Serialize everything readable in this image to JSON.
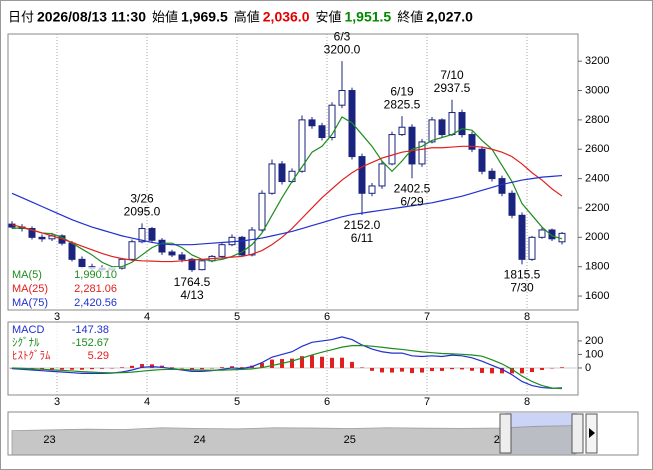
{
  "header": {
    "fields": [
      {
        "label": "日付",
        "value": "2026/08/13 11:30",
        "color": "#000000"
      },
      {
        "label": "始値",
        "value": "1,969.5",
        "color": "#000000"
      },
      {
        "label": "高値",
        "value": "2,036.0",
        "color": "#e00000"
      },
      {
        "label": "安値",
        "value": "1,951.5",
        "color": "#008800"
      },
      {
        "label": "終値",
        "value": "2,027.0",
        "color": "#000000"
      }
    ]
  },
  "chart_data": [
    {
      "type": "candlestick",
      "categories": [
        null,
        null,
        null,
        null,
        null,
        "3",
        null,
        null,
        null,
        null,
        null,
        null,
        null,
        null,
        "4",
        null,
        null,
        null,
        null,
        null,
        null,
        null,
        null,
        "5",
        null,
        null,
        null,
        null,
        null,
        null,
        null,
        null,
        "6",
        null,
        null,
        null,
        null,
        null,
        null,
        null,
        null,
        null,
        "7",
        null,
        null,
        null,
        null,
        null,
        null,
        null,
        null,
        null,
        "8",
        null,
        null,
        null
      ],
      "open": [
        2090,
        2070,
        2060,
        2000,
        1990,
        2010,
        1960,
        1850,
        1800,
        1790,
        1780,
        1790,
        1850,
        1970,
        2060,
        1980,
        1900,
        1880,
        1850,
        1780,
        1840,
        1870,
        1950,
        2000,
        1880,
        2050,
        2300,
        2500,
        2380,
        2450,
        2800,
        2760,
        2680,
        2900,
        3000,
        2550,
        2300,
        2350,
        2500,
        2700,
        2750,
        2500,
        2650,
        2800,
        2700,
        2850,
        2700,
        2600,
        2450,
        2400,
        2300,
        2150,
        1850,
        2000,
        2050,
        1969.5
      ],
      "high": [
        2110,
        2090,
        2075,
        2020,
        2030,
        2020,
        1975,
        1870,
        1820,
        1810,
        1800,
        1860,
        1985,
        2095,
        2070,
        1995,
        1915,
        1900,
        1860,
        1850,
        1880,
        1960,
        2020,
        2010,
        2070,
        2320,
        2530,
        2520,
        2470,
        2830,
        2820,
        2780,
        2920,
        3200,
        3020,
        2570,
        2370,
        2520,
        2720,
        2825.5,
        2770,
        2670,
        2820,
        2810,
        2937.5,
        2870,
        2720,
        2620,
        2470,
        2420,
        2320,
        2170,
        2010,
        2070,
        2060,
        2036
      ],
      "low": [
        2060,
        2040,
        1985,
        1970,
        1975,
        1945,
        1835,
        1785,
        1770,
        1765,
        1770,
        1780,
        1840,
        1960,
        1965,
        1880,
        1865,
        1830,
        1764.5,
        1775,
        1830,
        1860,
        1940,
        1870,
        1870,
        2040,
        2290,
        2360,
        2370,
        2440,
        2740,
        2660,
        2660,
        2880,
        2530,
        2152,
        2280,
        2330,
        2490,
        2690,
        2402.5,
        2480,
        2640,
        2680,
        2690,
        2680,
        2580,
        2430,
        2380,
        2280,
        2130,
        1815.5,
        1840,
        1990,
        1975,
        1951.5
      ],
      "close": [
        2070,
        2060,
        2000,
        1990,
        2010,
        1960,
        1850,
        1800,
        1790,
        1780,
        1790,
        1850,
        1970,
        2060,
        1980,
        1900,
        1880,
        1850,
        1780,
        1840,
        1870,
        1950,
        2000,
        1880,
        2050,
        2300,
        2500,
        2380,
        2450,
        2800,
        2760,
        2680,
        2900,
        3000,
        2550,
        2300,
        2350,
        2500,
        2700,
        2750,
        2500,
        2650,
        2800,
        2700,
        2850,
        2700,
        2600,
        2450,
        2400,
        2300,
        2150,
        1850,
        2000,
        2050,
        1990,
        2027
      ],
      "up_color": "#ffffff",
      "down_color": "#1a237e",
      "ylim": [
        1505,
        3385
      ],
      "yticks": [
        1600,
        1800,
        2000,
        2200,
        2400,
        2600,
        2800,
        3000,
        3200
      ],
      "grid": true,
      "series": [
        {
          "name": "MA(5)",
          "color": "#1e8c1e",
          "legend_value": "1,990.10",
          "values": [
            2060,
            2065,
            2050,
            2030,
            2025,
            2000,
            1960,
            1920,
            1880,
            1830,
            1800,
            1800,
            1830,
            1880,
            1930,
            1960,
            1960,
            1930,
            1880,
            1850,
            1840,
            1850,
            1870,
            1900,
            1950,
            2030,
            2150,
            2270,
            2380,
            2480,
            2580,
            2620,
            2700,
            2820,
            2780,
            2700,
            2620,
            2520,
            2450,
            2520,
            2600,
            2620,
            2660,
            2680,
            2700,
            2740,
            2730,
            2660,
            2600,
            2490,
            2380,
            2230,
            2150,
            2070,
            2010,
            1990.1
          ]
        },
        {
          "name": "MA(25)",
          "color": "#e02020",
          "legend_value": "2,281.06",
          "values": [
            2085,
            2070,
            2050,
            2030,
            2010,
            1990,
            1965,
            1940,
            1915,
            1890,
            1870,
            1855,
            1845,
            1840,
            1838,
            1835,
            1835,
            1840,
            1845,
            1850,
            1855,
            1860,
            1865,
            1870,
            1885,
            1910,
            1950,
            2000,
            2060,
            2130,
            2200,
            2270,
            2330,
            2390,
            2440,
            2480,
            2510,
            2540,
            2560,
            2580,
            2590,
            2600,
            2610,
            2610,
            2615,
            2620,
            2620,
            2615,
            2600,
            2580,
            2550,
            2500,
            2440,
            2390,
            2330,
            2281.06
          ]
        },
        {
          "name": "MA(75)",
          "color": "#2030d0",
          "legend_value": "2,420.56",
          "values": [
            2300,
            2270,
            2240,
            2210,
            2180,
            2150,
            2120,
            2095,
            2070,
            2050,
            2030,
            2010,
            1995,
            1980,
            1965,
            1955,
            1950,
            1950,
            1950,
            1955,
            1960,
            1965,
            1970,
            1975,
            1985,
            1995,
            2010,
            2025,
            2040,
            2060,
            2080,
            2100,
            2120,
            2140,
            2155,
            2165,
            2175,
            2185,
            2195,
            2205,
            2215,
            2225,
            2235,
            2250,
            2265,
            2280,
            2300,
            2320,
            2340,
            2360,
            2375,
            2390,
            2400,
            2410,
            2415,
            2420.56
          ]
        }
      ],
      "annotations": [
        {
          "date": "3/26",
          "value": 2095,
          "label": "2095.0"
        },
        {
          "date": "4/13",
          "value": 1764.5,
          "label": "1764.5"
        },
        {
          "date": "6/3",
          "value": 3200,
          "label": "3200.0"
        },
        {
          "date": "6/11",
          "value": 2152,
          "label": "2152.0"
        },
        {
          "date": "6/19",
          "value": 2825.5,
          "label": "2825.5"
        },
        {
          "date": "6/29",
          "value": 2402.5,
          "label": "2402.5"
        },
        {
          "date": "7/10",
          "value": 2937.5,
          "label": "2937.5"
        },
        {
          "date": "7/30",
          "value": 1815.5,
          "label": "1815.5"
        }
      ]
    },
    {
      "type": "macd",
      "categories": [
        null,
        null,
        null,
        null,
        null,
        "3",
        null,
        null,
        null,
        null,
        null,
        null,
        null,
        null,
        "4",
        null,
        null,
        null,
        null,
        null,
        null,
        null,
        null,
        "5",
        null,
        null,
        null,
        null,
        null,
        null,
        null,
        null,
        "6",
        null,
        null,
        null,
        null,
        null,
        null,
        null,
        null,
        null,
        "7",
        null,
        null,
        null,
        null,
        null,
        null,
        null,
        null,
        null,
        "8",
        null,
        null,
        null
      ],
      "ylim": [
        -200,
        340
      ],
      "yticks": [
        0,
        100,
        200
      ],
      "series": [
        {
          "name": "MACD",
          "color": "#2030d0",
          "values": [
            -5,
            -10,
            -15,
            -20,
            -25,
            -30,
            -35,
            -40,
            -40,
            -40,
            -38,
            -30,
            -15,
            5,
            10,
            5,
            -5,
            -15,
            -25,
            -25,
            -20,
            -10,
            0,
            -5,
            10,
            40,
            80,
            100,
            120,
            160,
            190,
            200,
            210,
            230,
            210,
            170,
            140,
            120,
            110,
            110,
            90,
            85,
            90,
            85,
            95,
            90,
            75,
            50,
            20,
            -10,
            -50,
            -100,
            -130,
            -145,
            -150,
            -147.38
          ]
        },
        {
          "name": "ｼｸﾞﾅﾙ",
          "color": "#1e8c1e",
          "values": [
            0,
            -3,
            -6,
            -10,
            -14,
            -18,
            -22,
            -27,
            -31,
            -34,
            -36,
            -35,
            -31,
            -24,
            -17,
            -12,
            -10,
            -11,
            -14,
            -16,
            -17,
            -16,
            -13,
            -11,
            -7,
            3,
            18,
            34,
            51,
            73,
            96,
            117,
            135,
            154,
            165,
            166,
            161,
            153,
            144,
            137,
            128,
            119,
            113,
            107,
            104,
            101,
            96,
            87,
            60,
            30,
            -10,
            -60,
            -100,
            -130,
            -148,
            -152.67
          ]
        }
      ],
      "histogram": {
        "name": "ﾋｽﾄｸﾞﾗﾑ",
        "color": "#e02020",
        "values": [
          -5,
          -7,
          -9,
          -10,
          -11,
          -12,
          -13,
          -13,
          -9,
          -6,
          -2,
          5,
          16,
          29,
          27,
          17,
          5,
          -4,
          -11,
          -9,
          -3,
          6,
          13,
          6,
          17,
          37,
          62,
          66,
          69,
          87,
          94,
          83,
          75,
          76,
          45,
          4,
          -21,
          -33,
          -34,
          -27,
          -38,
          -34,
          -23,
          -22,
          -9,
          -11,
          -21,
          -37,
          -40,
          -40,
          -40,
          -40,
          -30,
          -15,
          -2,
          5.29
        ]
      }
    },
    {
      "type": "area",
      "categories": [
        null,
        "23",
        null,
        null,
        null,
        "24",
        null,
        null,
        null,
        "25",
        null,
        null,
        null,
        "26",
        null,
        null
      ],
      "values": [
        1700,
        1750,
        1800,
        1780,
        1900,
        1850,
        1820,
        1900,
        1880,
        1850,
        1900,
        1870,
        1860,
        1880,
        2000,
        2050
      ],
      "color": "#b8b8b8",
      "ylim": [
        0,
        3000
      ]
    }
  ]
}
